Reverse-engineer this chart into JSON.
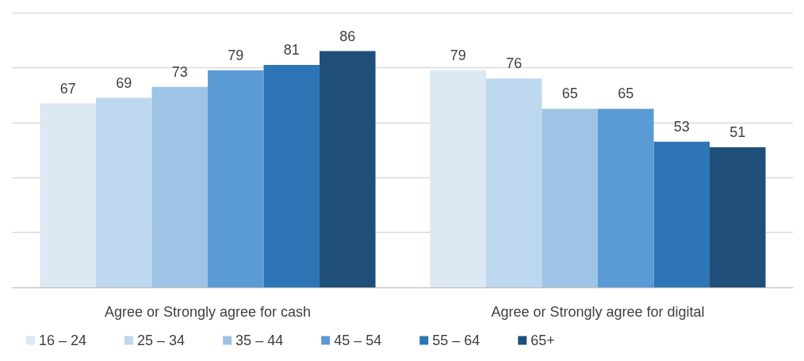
{
  "chart_data": {
    "type": "bar",
    "categories": [
      "Agree or Strongly agree for cash",
      "Agree or Strongly agree for digital"
    ],
    "series": [
      {
        "name": "16 – 24",
        "color": "#dde8f5",
        "values": [
          67,
          79
        ]
      },
      {
        "name": "25 – 34",
        "color": "#bdd7ee",
        "values": [
          69,
          76
        ]
      },
      {
        "name": "35 – 44",
        "color": "#9dc3e6",
        "values": [
          73,
          65
        ]
      },
      {
        "name": "45 – 54",
        "color": "#5b9bd5",
        "values": [
          79,
          65
        ]
      },
      {
        "name": "55 – 64",
        "color": "#2e75b6",
        "values": [
          81,
          53
        ]
      },
      {
        "name": "65+",
        "color": "#1f4e79",
        "values": [
          86,
          51
        ]
      }
    ],
    "ylim": [
      0,
      100
    ],
    "yticks": [
      {
        "value": 0,
        "label": null
      },
      {
        "value": 20,
        "label": null
      },
      {
        "value": 40,
        "label": null
      },
      {
        "value": 60,
        "label": null
      },
      {
        "value": 80,
        "label": null
      },
      {
        "value": 100,
        "label": null
      }
    ],
    "tick_labels": "x",
    "grid": "y",
    "legend": "bottom left",
    "data_labels": true
  }
}
